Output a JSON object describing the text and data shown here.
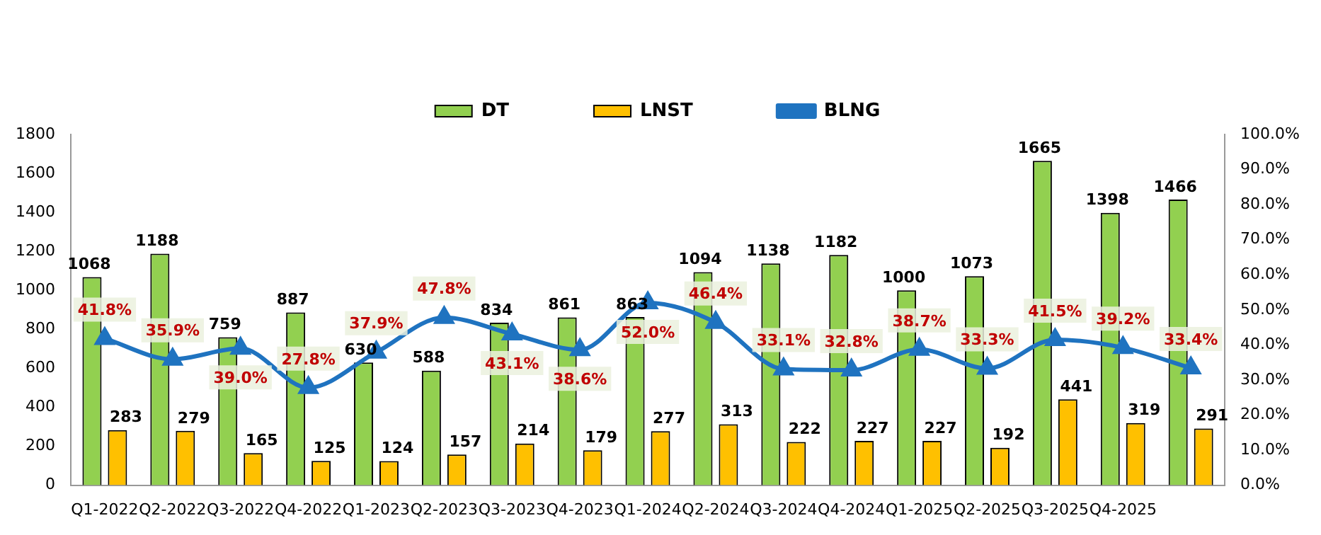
{
  "chart_data": {
    "type": "bar",
    "categories": [
      "Q1-2022",
      "Q2-2022",
      "Q3-2022",
      "Q4-2022",
      "Q1-2023",
      "Q2-2023",
      "Q3-2023",
      "Q4-2023",
      "Q1-2024",
      "Q2-2024",
      "Q3-2024",
      "Q4-2024",
      "Q1-2025",
      "Q2-2025",
      "Q3-2025",
      "Q4-2025",
      null
    ],
    "series": [
      {
        "name": "DT",
        "color": "#92d050",
        "values": [
          1068,
          1188,
          759,
          887,
          630,
          588,
          834,
          861,
          863,
          1094,
          1138,
          1182,
          1000,
          1073,
          1665,
          1398,
          1466
        ],
        "value_labels": [
          "1068",
          "1188",
          "759",
          "887",
          "630",
          "588",
          "834",
          "861",
          "863",
          "1094",
          "1138",
          "1182",
          "1000",
          "1073",
          "1665",
          "1398",
          "1466"
        ]
      },
      {
        "name": "LNST",
        "color": "#ffc000",
        "values": [
          283,
          279,
          165,
          125,
          124,
          157,
          214,
          179,
          277,
          313,
          222,
          227,
          227,
          192,
          441,
          319,
          291
        ],
        "value_labels": [
          "283",
          "279",
          "165",
          "125",
          "124",
          "157",
          "214",
          "179",
          "277",
          "313",
          "222",
          "227",
          "227",
          "192",
          "441",
          "319",
          "291"
        ]
      },
      {
        "name": "BLNG",
        "type": "line",
        "axis": "y2",
        "color": "#1f73c0",
        "marker": "triangle",
        "values": [
          41.8,
          35.9,
          39.0,
          27.8,
          37.9,
          47.8,
          43.1,
          38.6,
          52.0,
          46.4,
          33.1,
          32.8,
          38.7,
          33.3,
          41.5,
          39.2,
          33.4
        ],
        "value_labels": [
          "41.8%",
          "35.9%",
          "39.0%",
          "27.8%",
          "37.9%",
          "47.8%",
          "43.1%",
          "38.6%",
          "52.0%",
          "46.4%",
          "33.1%",
          "32.8%",
          "38.7%",
          "33.3%",
          "41.5%",
          "39.2%",
          "33.4%"
        ]
      }
    ],
    "ylim": [
      0,
      1800
    ],
    "yticks": [
      0,
      200,
      400,
      600,
      800,
      1000,
      1200,
      1400,
      1600,
      1800
    ],
    "y2lim": [
      0,
      100
    ],
    "y2ticks": [
      {
        "value": 0,
        "label": "0.0%"
      },
      {
        "value": 10,
        "label": "10.0%"
      },
      {
        "value": 20,
        "label": "20.0%"
      },
      {
        "value": 30,
        "label": "30.0%"
      },
      {
        "value": 40,
        "label": "40.0%"
      },
      {
        "value": 50,
        "label": "50.0%"
      },
      {
        "value": 60,
        "label": "60.0%"
      },
      {
        "value": 70,
        "label": "70.0%"
      },
      {
        "value": 80,
        "label": "80.0%"
      },
      {
        "value": 90,
        "label": "90.0%"
      },
      {
        "value": 100,
        "label": "100.0%"
      }
    ],
    "grid": false,
    "legend": "top"
  }
}
